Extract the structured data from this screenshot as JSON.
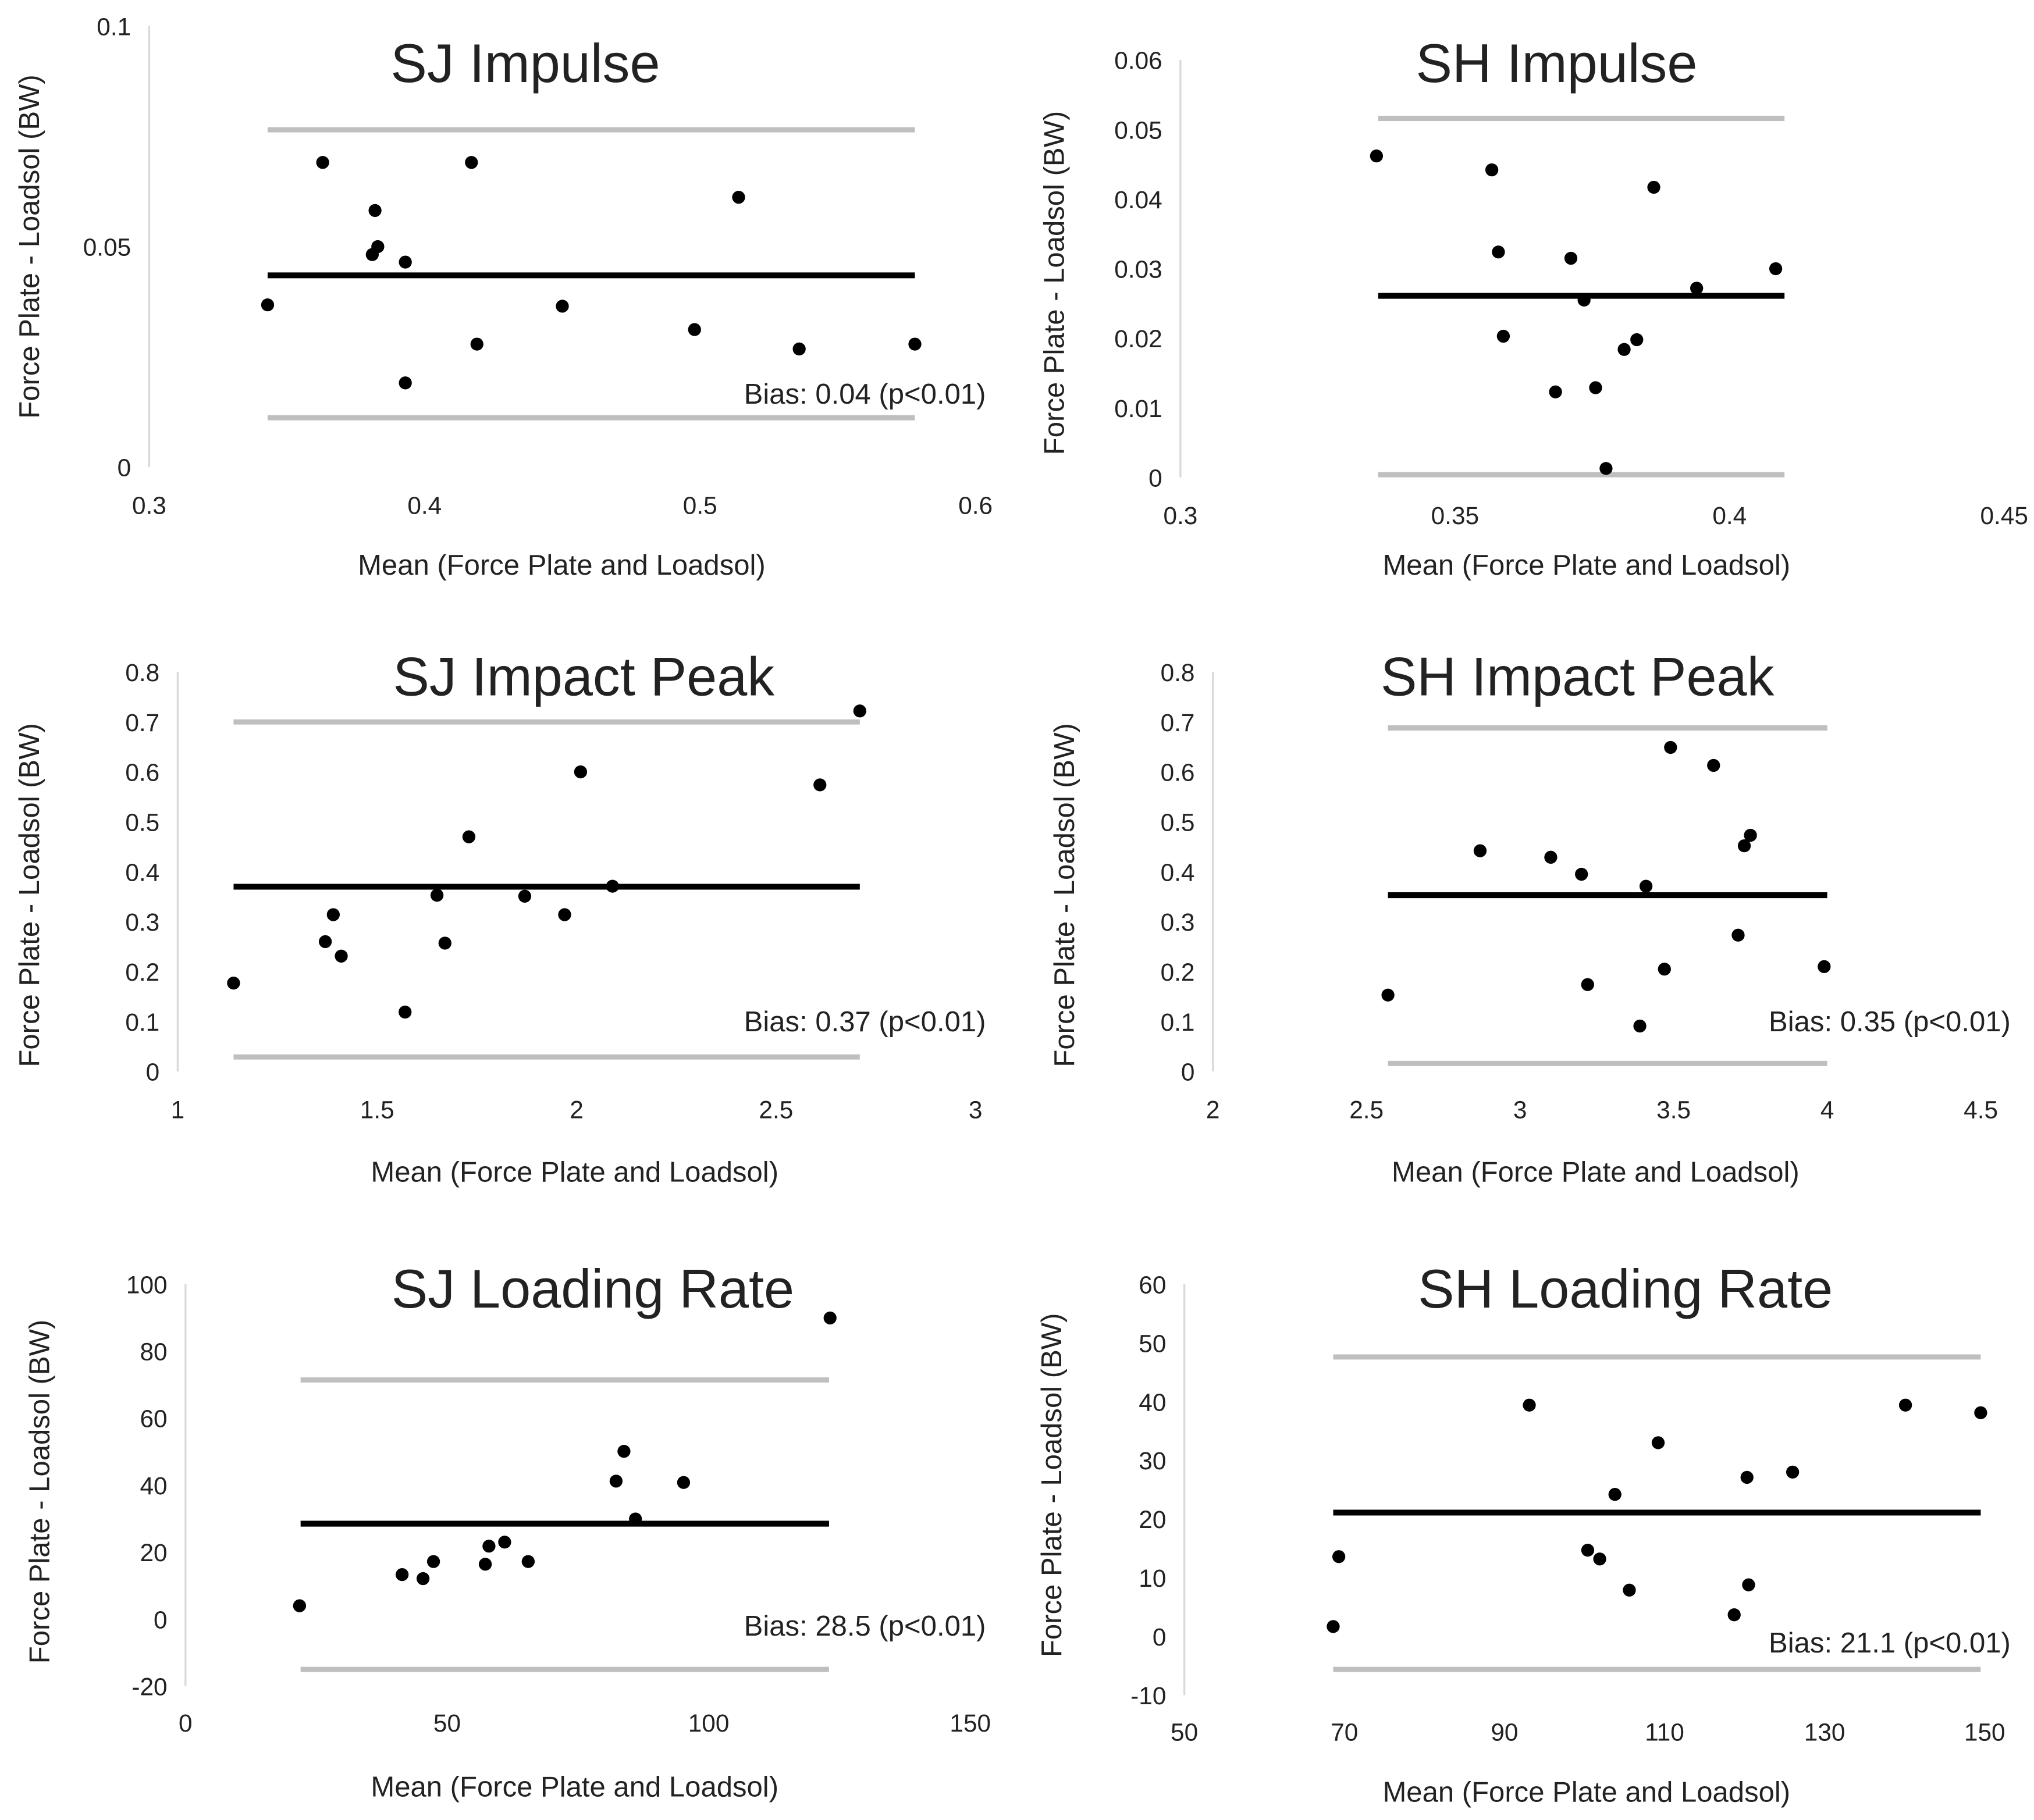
{
  "chart_data": [
    {
      "type": "scatter",
      "title": "SJ Impulse",
      "xlabel": "Mean (Force Plate and Loadsol)",
      "ylabel": "Force Plate - Loadsol (BW)",
      "xlim": [
        0.3,
        0.6
      ],
      "ylim": [
        0,
        0.1
      ],
      "xticks": [
        "0.3",
        "0.4",
        "0.5",
        "0.6"
      ],
      "yticks": [
        "0",
        "0.05",
        "0.1"
      ],
      "xtick_values": [
        0.3,
        0.4,
        0.5,
        0.6
      ],
      "ytick_values": [
        0,
        0.05,
        0.1
      ],
      "x": [
        0.343,
        0.363,
        0.382,
        0.381,
        0.383,
        0.393,
        0.393,
        0.417,
        0.419,
        0.45,
        0.498,
        0.514,
        0.536,
        0.578
      ],
      "y": [
        0.0368,
        0.0691,
        0.0582,
        0.0482,
        0.05,
        0.0465,
        0.0191,
        0.0691,
        0.0279,
        0.0365,
        0.0312,
        0.0612,
        0.0268,
        0.0279
      ],
      "bias": 0.0435,
      "upper_loa": 0.0765,
      "lower_loa": 0.0112,
      "line_x": [
        0.343,
        0.578
      ],
      "bias_label": "Bias: 0.04 (p<0.01)"
    },
    {
      "type": "scatter",
      "title": "SH Impulse",
      "xlabel": "Mean (Force Plate and Loadsol)",
      "ylabel": "Force Plate - Loadsol (BW)",
      "xlim": [
        0.3,
        0.45
      ],
      "ylim": [
        0,
        0.06
      ],
      "xticks": [
        "0.3",
        "0.35",
        "0.4",
        "0.45"
      ],
      "yticks": [
        "0",
        "0.01",
        "0.02",
        "0.03",
        "0.04",
        "0.05",
        "0.06"
      ],
      "xtick_values": [
        0.3,
        0.35,
        0.4,
        0.45
      ],
      "ytick_values": [
        0,
        0.01,
        0.02,
        0.03,
        0.04,
        0.05,
        0.06
      ],
      "x": [
        0.3357,
        0.3567,
        0.3579,
        0.3588,
        0.3683,
        0.3711,
        0.3735,
        0.3756,
        0.3775,
        0.3808,
        0.3831,
        0.3862,
        0.394,
        0.4084
      ],
      "y": [
        0.0462,
        0.0442,
        0.0324,
        0.0203,
        0.0123,
        0.0315,
        0.0255,
        0.0129,
        0.0013,
        0.0184,
        0.0198,
        0.0417,
        0.0272,
        0.03
      ],
      "bias": 0.0261,
      "upper_loa": 0.0516,
      "lower_loa": 0.0004,
      "line_x": [
        0.336,
        0.41
      ],
      "bias_label": ""
    },
    {
      "type": "scatter",
      "title": "SJ Impact Peak",
      "xlabel": "Mean (Force Plate and Loadsol)",
      "ylabel": "Force Plate - Loadsol (BW)",
      "xlim": [
        1,
        3
      ],
      "ylim": [
        0,
        0.8
      ],
      "xticks": [
        "1",
        "1.5",
        "2",
        "2.5",
        "3"
      ],
      "yticks": [
        "0",
        "0.1",
        "0.2",
        "0.3",
        "0.4",
        "0.5",
        "0.6",
        "0.7",
        "0.8"
      ],
      "xtick_values": [
        1,
        1.5,
        2,
        2.5,
        3
      ],
      "ytick_values": [
        0,
        0.1,
        0.2,
        0.3,
        0.4,
        0.5,
        0.6,
        0.7,
        0.8
      ],
      "x": [
        1.14,
        1.37,
        1.39,
        1.41,
        1.57,
        1.65,
        1.67,
        1.73,
        1.87,
        1.97,
        2.01,
        2.09,
        2.61,
        2.71
      ],
      "y": [
        0.177,
        0.26,
        0.314,
        0.231,
        0.119,
        0.353,
        0.257,
        0.47,
        0.351,
        0.314,
        0.6,
        0.371,
        0.574,
        0.722
      ],
      "bias": 0.37,
      "upper_loa": 0.7,
      "lower_loa": 0.029,
      "line_x": [
        1.14,
        2.71
      ],
      "bias_label": "Bias: 0.37 (p<0.01)"
    },
    {
      "type": "scatter",
      "title": "SH Impact Peak",
      "xlabel": "Mean (Force Plate and Loadsol)",
      "ylabel": "Force Plate - Loadsol (BW)",
      "xlim": [
        2,
        4.5
      ],
      "ylim": [
        0,
        0.8
      ],
      "xticks": [
        "2",
        "2.5",
        "3",
        "3.5",
        "4",
        "4.5"
      ],
      "yticks": [
        "0",
        "0.1",
        "0.2",
        "0.3",
        "0.4",
        "0.5",
        "0.6",
        "0.7",
        "0.8"
      ],
      "xtick_values": [
        2,
        2.5,
        3,
        3.5,
        4,
        4.5
      ],
      "ytick_values": [
        0,
        0.1,
        0.2,
        0.3,
        0.4,
        0.5,
        0.6,
        0.7,
        0.8
      ],
      "x": [
        2.57,
        2.87,
        3.1,
        3.2,
        3.22,
        3.39,
        3.41,
        3.47,
        3.49,
        3.63,
        3.71,
        3.73,
        3.75,
        3.99
      ],
      "y": [
        0.153,
        0.442,
        0.429,
        0.395,
        0.174,
        0.091,
        0.371,
        0.205,
        0.649,
        0.613,
        0.273,
        0.452,
        0.473,
        0.21
      ],
      "bias": 0.353,
      "upper_loa": 0.688,
      "lower_loa": 0.016,
      "line_x": [
        2.57,
        4.0
      ],
      "bias_label": "Bias: 0.35 (p<0.01)"
    },
    {
      "type": "scatter",
      "title": "SJ Loading Rate",
      "xlabel": "Mean (Force Plate and Loadsol)",
      "ylabel": "Force Plate - Loadsol (BW)",
      "xlim": [
        0,
        150
      ],
      "ylim": [
        -20,
        100
      ],
      "xticks": [
        "0",
        "50",
        "100",
        "150"
      ],
      "yticks": [
        "-20",
        "0",
        "20",
        "40",
        "60",
        "80",
        "100"
      ],
      "xtick_values": [
        0,
        50,
        100,
        150
      ],
      "ytick_values": [
        -20,
        0,
        20,
        40,
        60,
        80,
        100
      ],
      "x": [
        21.8,
        41.4,
        45.4,
        47.4,
        57.3,
        58.0,
        61.0,
        65.5,
        82.3,
        83.8,
        86.0,
        95.2,
        123.2
      ],
      "y": [
        4.0,
        13.3,
        12.1,
        17.2,
        16.4,
        21.8,
        23.0,
        17.2,
        41.2,
        50.1,
        29.9,
        40.8,
        89.9
      ],
      "bias": 28.5,
      "upper_loa": 71.4,
      "lower_loa": -15,
      "line_x": [
        22,
        123
      ],
      "bias_label": "Bias: 28.5 (p<0.01)"
    },
    {
      "type": "scatter",
      "title": "SH Loading Rate",
      "xlabel": "Mean (Force Plate and Loadsol)",
      "ylabel": "Force Plate - Loadsol (BW)",
      "xlim": [
        50,
        150
      ],
      "ylim": [
        -10,
        60
      ],
      "xticks": [
        "50",
        "70",
        "90",
        "110",
        "130",
        "150"
      ],
      "yticks": [
        "-10",
        "0",
        "10",
        "20",
        "30",
        "40",
        "50",
        "60"
      ],
      "xtick_values": [
        50,
        70,
        90,
        110,
        130,
        150
      ],
      "ytick_values": [
        -10,
        0,
        10,
        20,
        30,
        40,
        50,
        60
      ],
      "x": [
        68.6,
        69.3,
        93.1,
        100.4,
        101.9,
        103.8,
        105.6,
        109.2,
        118.7,
        120.3,
        120.5,
        126.0,
        140.1,
        149.5
      ],
      "y": [
        1.7,
        13.6,
        39.4,
        14.7,
        13.2,
        24.2,
        7.9,
        33.0,
        3.7,
        27.1,
        8.8,
        28.0,
        39.4,
        38.1
      ],
      "bias": 21.1,
      "upper_loa": 47.6,
      "lower_loa": -5.6,
      "line_x": [
        68.6,
        149.5
      ],
      "bias_label": "Bias: 21.1 (p<0.01)"
    }
  ]
}
